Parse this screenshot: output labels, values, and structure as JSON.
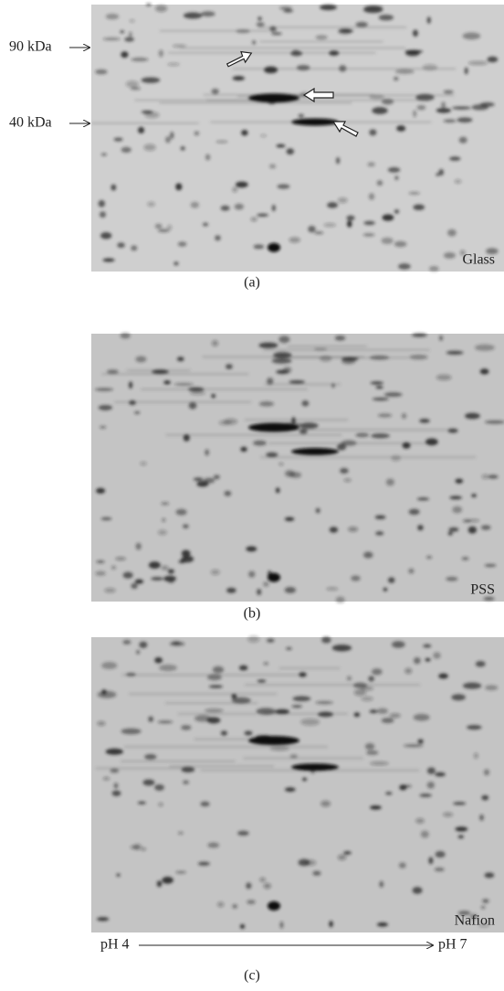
{
  "panels": [
    {
      "name": "Glass",
      "caption": "(a)"
    },
    {
      "name": "PSS",
      "caption": "(b)"
    },
    {
      "name": "Nafion",
      "caption": "(c)"
    }
  ],
  "markers": [
    "90 kDa",
    "40 kDa"
  ],
  "ph_axis": {
    "start": "pH 4",
    "end": "pH 7"
  }
}
